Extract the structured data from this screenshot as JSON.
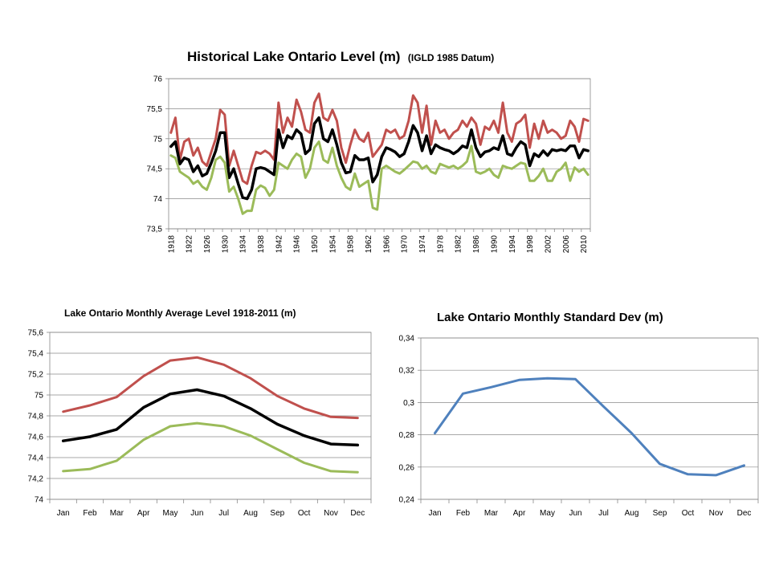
{
  "chart_data": [
    {
      "type": "line",
      "title": "Historical Lake Ontario Level (m)",
      "subtitle": "(IGLD 1985 Datum)",
      "xlabel": "",
      "ylabel": "",
      "ylim": [
        73.5,
        76
      ],
      "xlim": [
        1918,
        2011
      ],
      "yticks": [
        "73,5",
        "74",
        "74,5",
        "75",
        "75,5",
        "76"
      ],
      "ytick_values": [
        73.5,
        74,
        74.5,
        75,
        75.5,
        76
      ],
      "xticks": [
        "1918",
        "1922",
        "1926",
        "1930",
        "1934",
        "1938",
        "1942",
        "1946",
        "1950",
        "1954",
        "1958",
        "1962",
        "1966",
        "1970",
        "1974",
        "1978",
        "1982",
        "1986",
        "1990",
        "1994",
        "1998",
        "2002",
        "2006",
        "2010"
      ],
      "xtick_values": [
        1918,
        1922,
        1926,
        1930,
        1934,
        1938,
        1942,
        1946,
        1950,
        1954,
        1958,
        1962,
        1966,
        1970,
        1974,
        1978,
        1982,
        1986,
        1990,
        1994,
        1998,
        2002,
        2006,
        2010
      ],
      "grid": true,
      "legend": "none",
      "x": [
        1918,
        1919,
        1920,
        1921,
        1922,
        1923,
        1924,
        1925,
        1926,
        1927,
        1928,
        1929,
        1930,
        1931,
        1932,
        1933,
        1934,
        1935,
        1936,
        1937,
        1938,
        1939,
        1940,
        1941,
        1942,
        1943,
        1944,
        1945,
        1946,
        1947,
        1948,
        1949,
        1950,
        1951,
        1952,
        1953,
        1954,
        1955,
        1956,
        1957,
        1958,
        1959,
        1960,
        1961,
        1962,
        1963,
        1964,
        1965,
        1966,
        1967,
        1968,
        1969,
        1970,
        1971,
        1972,
        1973,
        1974,
        1975,
        1976,
        1977,
        1978,
        1979,
        1980,
        1981,
        1982,
        1983,
        1984,
        1985,
        1986,
        1987,
        1988,
        1989,
        1990,
        1991,
        1992,
        1993,
        1994,
        1995,
        1996,
        1997,
        1998,
        1999,
        2000,
        2001,
        2002,
        2003,
        2004,
        2005,
        2006,
        2007,
        2008,
        2009,
        2010,
        2011
      ],
      "series": [
        {
          "color": "#c0504d",
          "values": [
            75.1,
            75.35,
            74.65,
            74.95,
            75.0,
            74.72,
            74.85,
            74.62,
            74.55,
            74.78,
            75.0,
            75.48,
            75.4,
            74.55,
            74.8,
            74.55,
            74.3,
            74.25,
            74.55,
            74.78,
            74.75,
            74.8,
            74.75,
            74.65,
            75.6,
            75.1,
            75.35,
            75.2,
            75.65,
            75.45,
            75.15,
            75.1,
            75.6,
            75.75,
            75.35,
            75.3,
            75.48,
            75.3,
            74.85,
            74.6,
            74.9,
            75.15,
            75.0,
            74.95,
            75.1,
            74.7,
            74.8,
            74.9,
            75.15,
            75.1,
            75.15,
            75.0,
            75.05,
            75.3,
            75.72,
            75.6,
            75.1,
            75.55,
            74.9,
            75.3,
            75.1,
            75.15,
            75.0,
            75.1,
            75.15,
            75.3,
            75.2,
            75.35,
            75.25,
            74.9,
            75.2,
            75.15,
            75.3,
            75.1,
            75.6,
            75.1,
            74.95,
            75.25,
            75.3,
            75.4,
            74.85,
            75.25,
            75.0,
            75.3,
            75.1,
            75.15,
            75.1,
            75.0,
            75.05,
            75.3,
            75.2,
            74.95,
            75.33,
            75.3
          ]
        },
        {
          "color": "#000000",
          "values": [
            74.87,
            74.95,
            74.58,
            74.68,
            74.65,
            74.45,
            74.55,
            74.38,
            74.42,
            74.6,
            74.8,
            75.1,
            75.1,
            74.35,
            74.5,
            74.25,
            74.02,
            74.0,
            74.15,
            74.5,
            74.52,
            74.5,
            74.45,
            74.4,
            75.15,
            74.85,
            75.05,
            75.0,
            75.15,
            75.08,
            74.75,
            74.82,
            75.25,
            75.35,
            75.0,
            74.95,
            75.15,
            74.9,
            74.6,
            74.43,
            74.45,
            74.72,
            74.65,
            74.65,
            74.68,
            74.28,
            74.4,
            74.7,
            74.85,
            74.82,
            74.78,
            74.7,
            74.75,
            74.95,
            75.22,
            75.1,
            74.8,
            75.05,
            74.75,
            74.9,
            74.85,
            74.82,
            74.8,
            74.75,
            74.8,
            74.88,
            74.85,
            75.15,
            74.85,
            74.7,
            74.78,
            74.8,
            74.85,
            74.82,
            75.05,
            74.75,
            74.72,
            74.85,
            74.95,
            74.9,
            74.55,
            74.75,
            74.7,
            74.8,
            74.72,
            74.82,
            74.8,
            74.82,
            74.8,
            74.88,
            74.88,
            74.68,
            74.82,
            74.8
          ]
        },
        {
          "color": "#9bbb59",
          "values": [
            74.72,
            74.68,
            74.45,
            74.4,
            74.35,
            74.25,
            74.3,
            74.2,
            74.15,
            74.35,
            74.65,
            74.7,
            74.6,
            74.12,
            74.2,
            74.0,
            73.75,
            73.8,
            73.8,
            74.15,
            74.22,
            74.18,
            74.05,
            74.15,
            74.6,
            74.55,
            74.5,
            74.65,
            74.75,
            74.7,
            74.35,
            74.5,
            74.85,
            74.95,
            74.65,
            74.6,
            74.85,
            74.55,
            74.35,
            74.2,
            74.15,
            74.42,
            74.2,
            74.25,
            74.3,
            73.85,
            73.82,
            74.5,
            74.55,
            74.5,
            74.45,
            74.42,
            74.48,
            74.55,
            74.62,
            74.6,
            74.5,
            74.55,
            74.45,
            74.42,
            74.58,
            74.55,
            74.52,
            74.55,
            74.5,
            74.55,
            74.62,
            74.88,
            74.45,
            74.42,
            74.45,
            74.5,
            74.4,
            74.35,
            74.55,
            74.52,
            74.5,
            74.55,
            74.6,
            74.58,
            74.3,
            74.3,
            74.38,
            74.5,
            74.3,
            74.3,
            74.45,
            74.5,
            74.6,
            74.3,
            74.52,
            74.45,
            74.5,
            74.4
          ]
        }
      ]
    },
    {
      "type": "line",
      "title": "Lake Ontario Monthly Average Level 1918-2011 (m)",
      "xlabel": "",
      "ylabel": "",
      "ylim": [
        74,
        75.6
      ],
      "yticks": [
        "74",
        "74,2",
        "74,4",
        "74,6",
        "74,8",
        "75",
        "75,2",
        "75,4",
        "75,6"
      ],
      "ytick_values": [
        74,
        74.2,
        74.4,
        74.6,
        74.8,
        75,
        75.2,
        75.4,
        75.6
      ],
      "categories": [
        "Jan",
        "Feb",
        "Mar",
        "Apr",
        "May",
        "Jun",
        "Jul",
        "Aug",
        "Sep",
        "Oct",
        "Nov",
        "Dec"
      ],
      "grid": true,
      "legend": "none",
      "series": [
        {
          "color": "#c0504d",
          "values": [
            74.84,
            74.9,
            74.98,
            75.18,
            75.33,
            75.36,
            75.29,
            75.16,
            74.99,
            74.87,
            74.79,
            74.78
          ]
        },
        {
          "color": "#000000",
          "values": [
            74.56,
            74.6,
            74.67,
            74.88,
            75.01,
            75.05,
            74.99,
            74.87,
            74.72,
            74.61,
            74.53,
            74.52
          ]
        },
        {
          "color": "#9bbb59",
          "values": [
            74.27,
            74.29,
            74.37,
            74.57,
            74.7,
            74.73,
            74.7,
            74.61,
            74.48,
            74.35,
            74.27,
            74.26
          ]
        }
      ]
    },
    {
      "type": "line",
      "title": "Lake Ontario Monthly Standard Dev (m)",
      "xlabel": "",
      "ylabel": "",
      "ylim": [
        0.24,
        0.34
      ],
      "yticks": [
        "0,24",
        "0,26",
        "0,28",
        "0,3",
        "0,32",
        "0,34"
      ],
      "ytick_values": [
        0.24,
        0.26,
        0.28,
        0.3,
        0.32,
        0.34
      ],
      "categories": [
        "Jan",
        "Feb",
        "Mar",
        "Apr",
        "May",
        "Jun",
        "Jul",
        "Aug",
        "Sep",
        "Oct",
        "Nov",
        "Dec"
      ],
      "grid": true,
      "legend": "none",
      "series": [
        {
          "color": "#4f81bd",
          "values": [
            0.281,
            0.3055,
            0.3095,
            0.314,
            0.315,
            0.3145,
            0.2975,
            0.281,
            0.262,
            0.2555,
            0.255,
            0.261
          ]
        }
      ]
    }
  ]
}
